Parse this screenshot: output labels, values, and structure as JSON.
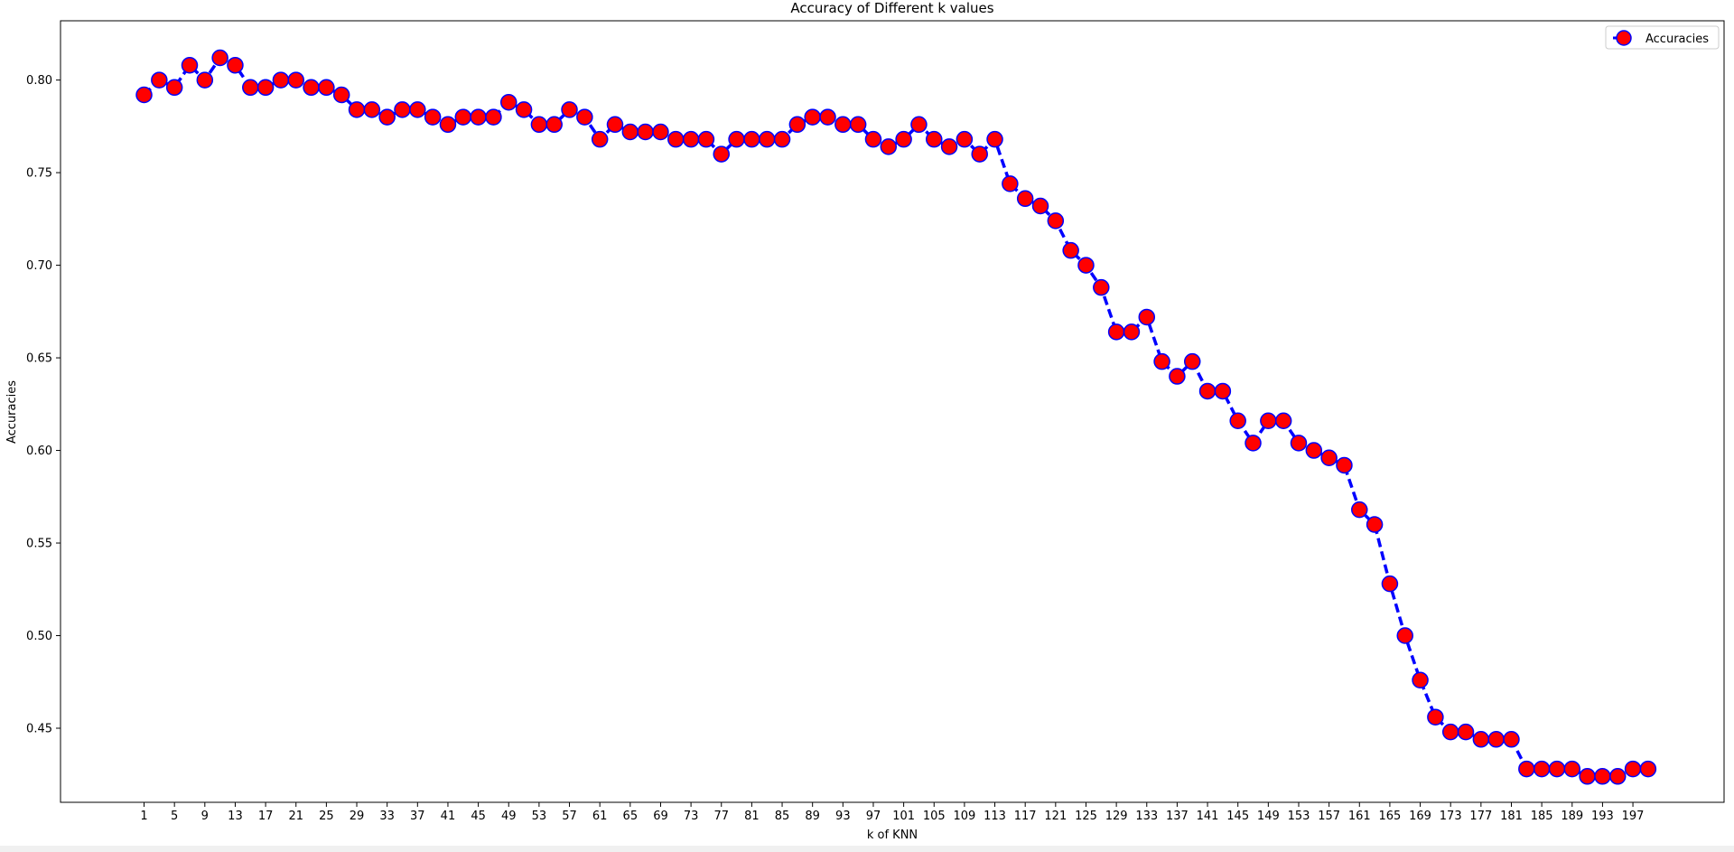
{
  "chart_data": {
    "type": "line",
    "title": "Accuracy of Different k values",
    "xlabel": "k of KNN",
    "ylabel": "Accuracies",
    "xlim": [
      -10,
      209
    ],
    "ylim": [
      0.41,
      0.832
    ],
    "xticks": [
      1,
      5,
      9,
      13,
      17,
      21,
      25,
      29,
      33,
      37,
      41,
      45,
      49,
      53,
      57,
      61,
      65,
      69,
      73,
      77,
      81,
      85,
      89,
      93,
      97,
      101,
      105,
      109,
      113,
      117,
      121,
      125,
      129,
      133,
      137,
      141,
      145,
      149,
      153,
      157,
      161,
      165,
      169,
      173,
      177,
      181,
      185,
      189,
      193,
      197
    ],
    "yticks": [
      "0.45",
      "0.50",
      "0.55",
      "0.60",
      "0.65",
      "0.70",
      "0.75",
      "0.80"
    ],
    "grid": false,
    "legend_position": "top-right",
    "line_style": "dashed",
    "line_color": "#0000ff",
    "marker_face_color": "#ff0000",
    "marker_edge_color": "#0000ff",
    "series": [
      {
        "name": "Accuracies",
        "x": [
          1,
          3,
          5,
          7,
          9,
          11,
          13,
          15,
          17,
          19,
          21,
          23,
          25,
          27,
          29,
          31,
          33,
          35,
          37,
          39,
          41,
          43,
          45,
          47,
          49,
          51,
          53,
          55,
          57,
          59,
          61,
          63,
          65,
          67,
          69,
          71,
          73,
          75,
          77,
          79,
          81,
          83,
          85,
          87,
          89,
          91,
          93,
          95,
          97,
          99,
          101,
          103,
          105,
          107,
          109,
          111,
          113,
          115,
          117,
          119,
          121,
          123,
          125,
          127,
          129,
          131,
          133,
          135,
          137,
          139,
          141,
          143,
          145,
          147,
          149,
          151,
          153,
          155,
          157,
          159,
          161,
          163,
          165,
          167,
          169,
          171,
          173,
          175,
          177,
          179,
          181,
          183,
          185,
          187,
          189,
          191,
          193,
          195,
          197,
          199
        ],
        "values": [
          0.792,
          0.8,
          0.796,
          0.808,
          0.8,
          0.812,
          0.808,
          0.796,
          0.796,
          0.8,
          0.8,
          0.796,
          0.796,
          0.792,
          0.784,
          0.784,
          0.78,
          0.784,
          0.784,
          0.78,
          0.776,
          0.78,
          0.78,
          0.78,
          0.788,
          0.784,
          0.776,
          0.776,
          0.784,
          0.78,
          0.768,
          0.776,
          0.772,
          0.772,
          0.772,
          0.768,
          0.768,
          0.768,
          0.76,
          0.768,
          0.768,
          0.768,
          0.768,
          0.776,
          0.78,
          0.78,
          0.776,
          0.776,
          0.768,
          0.764,
          0.768,
          0.776,
          0.768,
          0.764,
          0.768,
          0.76,
          0.768,
          0.744,
          0.736,
          0.732,
          0.724,
          0.708,
          0.7,
          0.688,
          0.664,
          0.664,
          0.672,
          0.648,
          0.64,
          0.648,
          0.632,
          0.632,
          0.616,
          0.604,
          0.616,
          0.616,
          0.604,
          0.6,
          0.596,
          0.592,
          0.568,
          0.56,
          0.528,
          0.5,
          0.476,
          0.456,
          0.448,
          0.448,
          0.444,
          0.444,
          0.444,
          0.428,
          0.428,
          0.428,
          0.428,
          0.424,
          0.424,
          0.424,
          0.428,
          0.428
        ]
      }
    ]
  }
}
